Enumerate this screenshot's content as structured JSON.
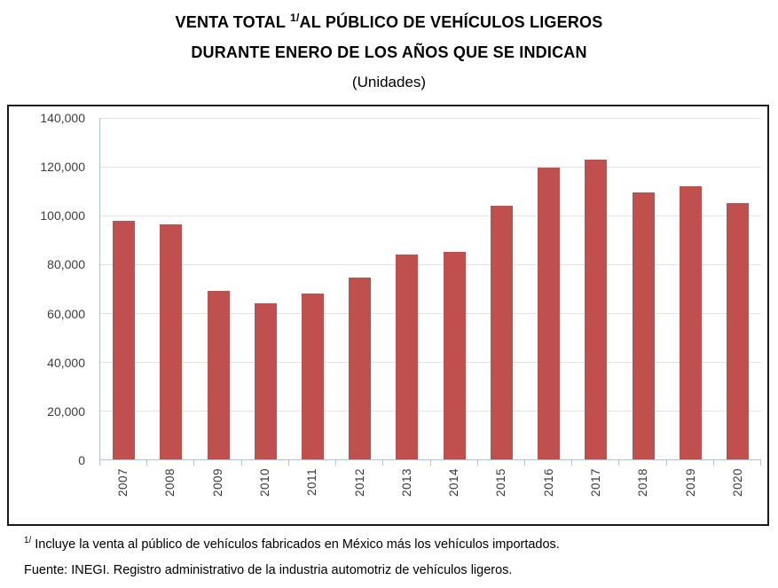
{
  "header": {
    "title_part1": "VENTA TOTAL ",
    "title_sup": "1/",
    "title_part2": "AL PÚBLICO DE VEHÍCULOS LIGEROS",
    "title_line2": "DURANTE ENERO DE LOS AÑOS QUE SE INDICAN",
    "subtitle": "(Unidades)"
  },
  "chart_data": {
    "type": "bar",
    "title": "VENTA TOTAL 1/ AL PÚBLICO DE VEHÍCULOS LIGEROS DURANTE ENERO DE LOS AÑOS QUE SE INDICAN",
    "subtitle": "(Unidades)",
    "categories": [
      "2007",
      "2008",
      "2009",
      "2010",
      "2011",
      "2012",
      "2013",
      "2014",
      "2015",
      "2016",
      "2017",
      "2018",
      "2019",
      "2020"
    ],
    "values": [
      98000,
      96500,
      69000,
      64000,
      68000,
      74500,
      84000,
      85000,
      104000,
      119500,
      123000,
      109500,
      112000,
      105000
    ],
    "xlabel": "",
    "ylabel": "",
    "ylim": [
      0,
      140000
    ],
    "y_ticks": [
      0,
      20000,
      40000,
      60000,
      80000,
      100000,
      120000,
      140000
    ],
    "y_tick_labels": [
      "0",
      "20,000",
      "40,000",
      "60,000",
      "80,000",
      "100,000",
      "120,000",
      "140,000"
    ],
    "grid": true,
    "legend": false,
    "bar_color": "#C0504D",
    "gridline_color": "#E2E2E2",
    "axis_color": "#AEC2DA"
  },
  "footer": {
    "note_sup": "1/",
    "note_text": " Incluye la venta al público de vehículos fabricados en México más los vehículos importados.",
    "source": "Fuente: INEGI. Registro administrativo de la industria automotriz de vehículos ligeros."
  }
}
